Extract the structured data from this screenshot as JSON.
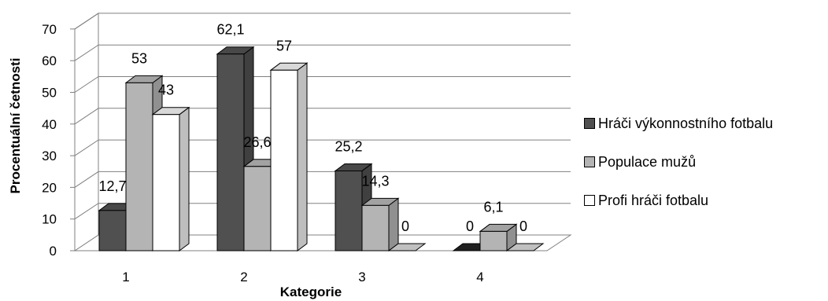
{
  "chart_data": {
    "type": "bar",
    "categories": [
      "1",
      "2",
      "3",
      "4"
    ],
    "series": [
      {
        "name": "Hráči výkonnostního fotbalu",
        "values": [
          12.7,
          62.1,
          25.2,
          0
        ],
        "labels": [
          "12,7",
          "62,1",
          "25,2",
          "0"
        ],
        "color": "#505050"
      },
      {
        "name": "Populace mužů",
        "values": [
          53,
          26.6,
          14.3,
          6.1
        ],
        "labels": [
          "53",
          "26,6",
          "14,3",
          "6,1"
        ],
        "color": "#b4b4b4"
      },
      {
        "name": "Profi hráči fotbalu",
        "values": [
          43,
          57,
          0,
          0
        ],
        "labels": [
          "43",
          "57",
          "0",
          "0"
        ],
        "color": "#ffffff"
      }
    ],
    "xlabel": "Kategorie",
    "ylabel": "Procentuální četnosti",
    "ylim": [
      0,
      70
    ],
    "yticks": [
      0,
      10,
      20,
      30,
      40,
      50,
      60,
      70
    ],
    "grid": true,
    "legend_position": "right"
  }
}
